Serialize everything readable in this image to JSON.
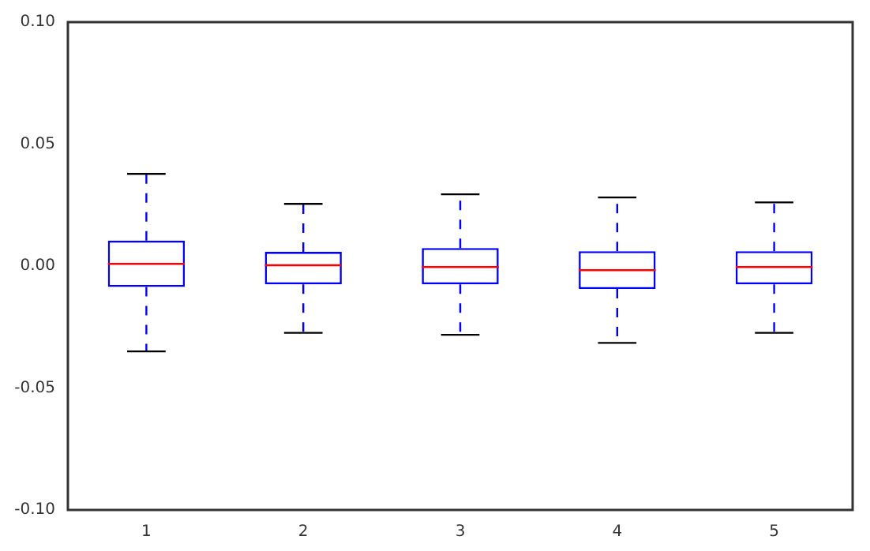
{
  "chart_data": {
    "type": "box",
    "categories": [
      "1",
      "2",
      "3",
      "4",
      "5"
    ],
    "boxes": [
      {
        "low": -0.035,
        "q1": -0.0086,
        "median": 0.0009,
        "q3": 0.0104,
        "high": 0.0378
      },
      {
        "low": -0.0274,
        "q1": -0.0075,
        "median": 0.0003,
        "q3": 0.0058,
        "high": 0.0255
      },
      {
        "low": -0.0282,
        "q1": -0.0075,
        "median": -0.0004,
        "q3": 0.0074,
        "high": 0.0294
      },
      {
        "low": -0.0315,
        "q1": -0.0094,
        "median": -0.0017,
        "q3": 0.0061,
        "high": 0.0281
      },
      {
        "low": -0.0274,
        "q1": -0.0075,
        "median": -0.0004,
        "q3": 0.0061,
        "high": 0.0261
      }
    ],
    "color": "#0000ff",
    "ylim": [
      -0.1,
      0.1
    ],
    "yticks": [
      {
        "value": -0.1,
        "label": "-0.10"
      },
      {
        "value": -0.05,
        "label": "-0.05"
      },
      {
        "value": 0,
        "label": "0.00"
      },
      {
        "value": 0.05,
        "label": "0.05"
      },
      {
        "value": 0.1,
        "label": "0.10"
      }
    ],
    "grid": false,
    "legend": false,
    "line_style": "dashed"
  }
}
